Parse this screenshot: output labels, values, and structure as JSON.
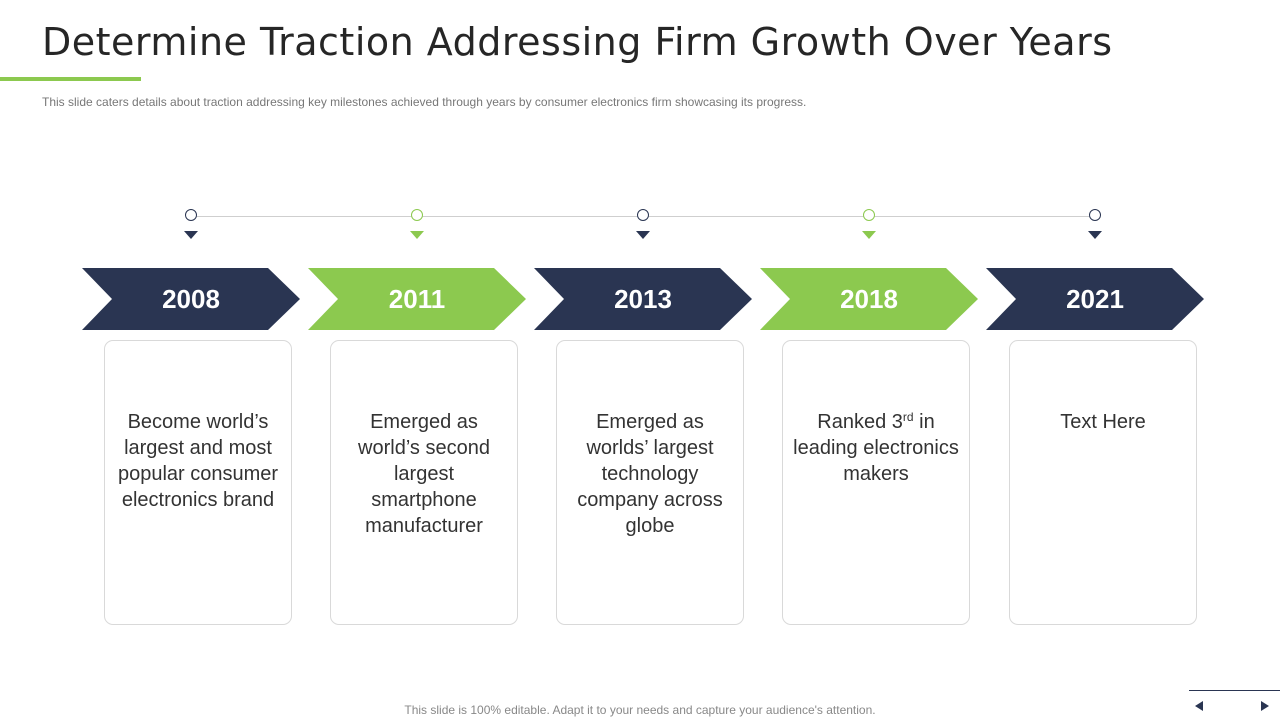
{
  "title": "Determine Traction Addressing Firm Growth Over Years",
  "subtitle": "This slide caters details about traction addressing  key milestones achieved  through  years by consumer electronics firm showcasing its progress.",
  "colors": {
    "navy": "#2a3552",
    "green": "#8cc94f",
    "line": "#cfcfcf"
  },
  "milestones": [
    {
      "year": "2008",
      "color": "navy",
      "text": "Become world’s largest and most popular consumer electronics brand"
    },
    {
      "year": "2011",
      "color": "green",
      "text": "Emerged as world’s second largest smartphone manufacturer"
    },
    {
      "year": "2013",
      "color": "navy",
      "text": "Emerged as worlds’ largest technology company across globe"
    },
    {
      "year": "2018",
      "color": "green",
      "text_before": "Ranked 3",
      "text_sup": "rd",
      "text_after": " in leading electronics makers"
    },
    {
      "year": "2021",
      "color": "navy",
      "text": "Text Here"
    }
  ],
  "footer": "This slide is 100% editable. Adapt it to your needs and capture your audience's attention.",
  "nav": {
    "prev_icon": "triangle-left",
    "next_icon": "triangle-right"
  }
}
